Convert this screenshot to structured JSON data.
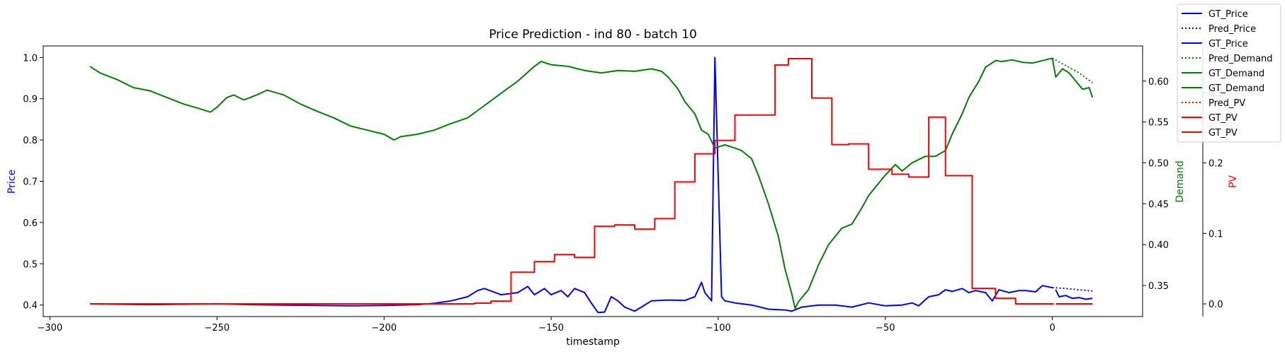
{
  "chart_data": {
    "type": "line",
    "title": "Price Prediction - ind 80 - batch 10",
    "xlabel": "timestamp",
    "xlim": [
      -302,
      27
    ],
    "xticks": [
      -300,
      -250,
      -200,
      -150,
      -100,
      -50,
      0
    ],
    "axes": {
      "price": {
        "label": "Price",
        "color": "#0000ff",
        "ylim": [
          0.372,
          1.028
        ],
        "ticks": [
          0.4,
          0.5,
          0.6,
          0.7,
          0.8,
          0.9,
          1.0
        ]
      },
      "demand": {
        "label": "Demand",
        "color": "#008000",
        "ylim": [
          0.312,
          0.643
        ],
        "ticks": [
          0.35,
          0.4,
          0.45,
          0.5,
          0.55,
          0.6
        ]
      },
      "pv": {
        "label": "PV",
        "color": "#ff0000",
        "ylim": [
          -0.018,
          0.366
        ],
        "ticks": [
          0.0,
          0.1,
          0.2,
          0.3
        ]
      }
    },
    "grid": false,
    "legend_position": "top-right (outside)",
    "legend": [
      {
        "label": "GT_Price",
        "color": "#0000ff",
        "style": "solid"
      },
      {
        "label": "Pred_Price",
        "color": "#0000ff",
        "style": "dotted"
      },
      {
        "label": "GT_Price",
        "color": "#0000ff",
        "style": "solid"
      },
      {
        "label": "Pred_Demand",
        "color": "#008000",
        "style": "dotted"
      },
      {
        "label": "GT_Demand",
        "color": "#008000",
        "style": "solid"
      },
      {
        "label": "GT_Demand",
        "color": "#008000",
        "style": "solid"
      },
      {
        "label": "Pred_PV",
        "color": "#ff0000",
        "style": "dotted"
      },
      {
        "label": "GT_PV",
        "color": "#ff0000",
        "style": "solid"
      },
      {
        "label": "GT_PV",
        "color": "#ff0000",
        "style": "solid"
      }
    ],
    "series": [
      {
        "name": "GT_Price",
        "axis": "price",
        "color": "#0000ff",
        "style": "solid",
        "points": [
          [
            -288,
            0.403
          ],
          [
            -280,
            0.402
          ],
          [
            -270,
            0.401
          ],
          [
            -260,
            0.402
          ],
          [
            -250,
            0.403
          ],
          [
            -240,
            0.401
          ],
          [
            -230,
            0.4
          ],
          [
            -220,
            0.399
          ],
          [
            -210,
            0.398
          ],
          [
            -200,
            0.399
          ],
          [
            -190,
            0.401
          ],
          [
            -185,
            0.404
          ],
          [
            -180,
            0.41
          ],
          [
            -175,
            0.42
          ],
          [
            -172,
            0.435
          ],
          [
            -170,
            0.44
          ],
          [
            -165,
            0.425
          ],
          [
            -160,
            0.43
          ],
          [
            -157,
            0.445
          ],
          [
            -155,
            0.425
          ],
          [
            -152,
            0.44
          ],
          [
            -150,
            0.425
          ],
          [
            -147,
            0.435
          ],
          [
            -145,
            0.42
          ],
          [
            -143,
            0.44
          ],
          [
            -140,
            0.43
          ],
          [
            -138,
            0.405
          ],
          [
            -136,
            0.382
          ],
          [
            -134,
            0.383
          ],
          [
            -132,
            0.42
          ],
          [
            -130,
            0.41
          ],
          [
            -128,
            0.395
          ],
          [
            -125,
            0.385
          ],
          [
            -123,
            0.395
          ],
          [
            -120,
            0.41
          ],
          [
            -115,
            0.412
          ],
          [
            -110,
            0.411
          ],
          [
            -107,
            0.42
          ],
          [
            -105,
            0.455
          ],
          [
            -104,
            0.43
          ],
          [
            -102,
            0.41
          ],
          [
            -101,
            1.0
          ],
          [
            -99,
            0.42
          ],
          [
            -98,
            0.41
          ],
          [
            -95,
            0.405
          ],
          [
            -90,
            0.4
          ],
          [
            -85,
            0.39
          ],
          [
            -80,
            0.388
          ],
          [
            -78,
            0.385
          ],
          [
            -75,
            0.395
          ],
          [
            -70,
            0.4
          ],
          [
            -65,
            0.4
          ],
          [
            -60,
            0.395
          ],
          [
            -55,
            0.405
          ],
          [
            -50,
            0.398
          ],
          [
            -45,
            0.4
          ],
          [
            -42,
            0.405
          ],
          [
            -40,
            0.398
          ],
          [
            -37,
            0.42
          ],
          [
            -34,
            0.425
          ],
          [
            -32,
            0.437
          ],
          [
            -30,
            0.433
          ],
          [
            -27,
            0.44
          ],
          [
            -25,
            0.43
          ],
          [
            -23,
            0.435
          ],
          [
            -20,
            0.43
          ],
          [
            -18,
            0.41
          ],
          [
            -16,
            0.437
          ],
          [
            -13,
            0.43
          ],
          [
            -10,
            0.435
          ],
          [
            -8,
            0.435
          ],
          [
            -5,
            0.432
          ],
          [
            -3,
            0.447
          ],
          [
            0,
            0.442
          ]
        ]
      },
      {
        "name": "Pred_Price",
        "axis": "price",
        "color": "#0000ff",
        "style": "dotted",
        "points": [
          [
            0,
            0.442
          ],
          [
            4,
            0.44
          ],
          [
            8,
            0.437
          ],
          [
            12,
            0.434
          ]
        ]
      },
      {
        "name": "GT_Price",
        "axis": "price",
        "color": "#0000ff",
        "style": "solid",
        "points": [
          [
            1,
            0.437
          ],
          [
            2,
            0.42
          ],
          [
            4,
            0.423
          ],
          [
            6,
            0.416
          ],
          [
            8,
            0.418
          ],
          [
            10,
            0.414
          ],
          [
            12,
            0.416
          ]
        ]
      },
      {
        "name": "GT_Demand",
        "axis": "demand",
        "color": "#008000",
        "style": "solid",
        "points": [
          [
            -288,
            0.618
          ],
          [
            -285,
            0.61
          ],
          [
            -280,
            0.602
          ],
          [
            -275,
            0.592
          ],
          [
            -270,
            0.588
          ],
          [
            -265,
            0.58
          ],
          [
            -260,
            0.572
          ],
          [
            -255,
            0.566
          ],
          [
            -252,
            0.562
          ],
          [
            -250,
            0.568
          ],
          [
            -247,
            0.58
          ],
          [
            -245,
            0.583
          ],
          [
            -242,
            0.577
          ],
          [
            -240,
            0.58
          ],
          [
            -237,
            0.585
          ],
          [
            -235,
            0.589
          ],
          [
            -230,
            0.583
          ],
          [
            -225,
            0.572
          ],
          [
            -220,
            0.563
          ],
          [
            -215,
            0.555
          ],
          [
            -210,
            0.545
          ],
          [
            -205,
            0.54
          ],
          [
            -200,
            0.535
          ],
          [
            -197,
            0.528
          ],
          [
            -195,
            0.532
          ],
          [
            -190,
            0.535
          ],
          [
            -185,
            0.54
          ],
          [
            -180,
            0.548
          ],
          [
            -175,
            0.555
          ],
          [
            -170,
            0.57
          ],
          [
            -165,
            0.585
          ],
          [
            -160,
            0.6
          ],
          [
            -155,
            0.618
          ],
          [
            -153,
            0.624
          ],
          [
            -150,
            0.62
          ],
          [
            -145,
            0.618
          ],
          [
            -140,
            0.613
          ],
          [
            -135,
            0.61
          ],
          [
            -130,
            0.613
          ],
          [
            -125,
            0.612
          ],
          [
            -120,
            0.615
          ],
          [
            -117,
            0.612
          ],
          [
            -115,
            0.605
          ],
          [
            -112,
            0.59
          ],
          [
            -110,
            0.575
          ],
          [
            -107,
            0.56
          ],
          [
            -105,
            0.54
          ],
          [
            -103,
            0.535
          ],
          [
            -101,
            0.518
          ],
          [
            -98,
            0.522
          ],
          [
            -95,
            0.518
          ],
          [
            -93,
            0.515
          ],
          [
            -90,
            0.505
          ],
          [
            -88,
            0.485
          ],
          [
            -85,
            0.45
          ],
          [
            -82,
            0.41
          ],
          [
            -80,
            0.37
          ],
          [
            -78,
            0.34
          ],
          [
            -77,
            0.322
          ],
          [
            -76,
            0.33
          ],
          [
            -73,
            0.345
          ],
          [
            -70,
            0.375
          ],
          [
            -67,
            0.4
          ],
          [
            -63,
            0.42
          ],
          [
            -60,
            0.425
          ],
          [
            -57,
            0.445
          ],
          [
            -55,
            0.46
          ],
          [
            -52,
            0.475
          ],
          [
            -50,
            0.485
          ],
          [
            -47,
            0.498
          ],
          [
            -45,
            0.49
          ],
          [
            -42,
            0.5
          ],
          [
            -38,
            0.508
          ],
          [
            -35,
            0.508
          ],
          [
            -32,
            0.515
          ],
          [
            -30,
            0.535
          ],
          [
            -27,
            0.56
          ],
          [
            -25,
            0.58
          ],
          [
            -22,
            0.6
          ],
          [
            -20,
            0.617
          ],
          [
            -17,
            0.625
          ],
          [
            -15,
            0.624
          ],
          [
            -12,
            0.626
          ],
          [
            -9,
            0.623
          ],
          [
            -6,
            0.622
          ],
          [
            -3,
            0.625
          ],
          [
            0,
            0.628
          ]
        ]
      },
      {
        "name": "Pred_Demand",
        "axis": "demand",
        "color": "#008000",
        "style": "dotted",
        "points": [
          [
            0,
            0.628
          ],
          [
            4,
            0.619
          ],
          [
            8,
            0.61
          ],
          [
            12,
            0.598
          ]
        ]
      },
      {
        "name": "GT_Demand",
        "axis": "demand",
        "color": "#008000",
        "style": "solid",
        "points": [
          [
            0,
            0.628
          ],
          [
            1,
            0.605
          ],
          [
            3,
            0.615
          ],
          [
            5,
            0.61
          ],
          [
            7,
            0.6
          ],
          [
            9,
            0.59
          ],
          [
            11,
            0.592
          ],
          [
            12,
            0.58
          ]
        ]
      },
      {
        "name": "GT_PV",
        "axis": "pv",
        "color": "#ff0000",
        "style": "solid",
        "points": [
          [
            -288,
            0.0
          ],
          [
            -173,
            0.0
          ],
          [
            -173,
            0.001
          ],
          [
            -168,
            0.001
          ],
          [
            -168,
            0.004
          ],
          [
            -162,
            0.004
          ],
          [
            -162,
            0.045
          ],
          [
            -155,
            0.045
          ],
          [
            -155,
            0.06
          ],
          [
            -149,
            0.06
          ],
          [
            -149,
            0.07
          ],
          [
            -143,
            0.07
          ],
          [
            -143,
            0.066
          ],
          [
            -137,
            0.066
          ],
          [
            -137,
            0.11
          ],
          [
            -131,
            0.11
          ],
          [
            -131,
            0.112
          ],
          [
            -125,
            0.112
          ],
          [
            -125,
            0.106
          ],
          [
            -119,
            0.106
          ],
          [
            -119,
            0.121
          ],
          [
            -113,
            0.121
          ],
          [
            -113,
            0.173
          ],
          [
            -107,
            0.173
          ],
          [
            -107,
            0.213
          ],
          [
            -101,
            0.213
          ],
          [
            -101,
            0.232
          ],
          [
            -95,
            0.232
          ],
          [
            -95,
            0.268
          ],
          [
            -83,
            0.268
          ],
          [
            -83,
            0.339
          ],
          [
            -79,
            0.339
          ],
          [
            -79,
            0.348
          ],
          [
            -72,
            0.348
          ],
          [
            -72,
            0.292
          ],
          [
            -66,
            0.292
          ],
          [
            -66,
            0.226
          ],
          [
            -61,
            0.226
          ],
          [
            -61,
            0.227
          ],
          [
            -55,
            0.227
          ],
          [
            -55,
            0.191
          ],
          [
            -48,
            0.191
          ],
          [
            -48,
            0.184
          ],
          [
            -43,
            0.184
          ],
          [
            -43,
            0.18
          ],
          [
            -37,
            0.18
          ],
          [
            -37,
            0.265
          ],
          [
            -32,
            0.265
          ],
          [
            -32,
            0.182
          ],
          [
            -24,
            0.182
          ],
          [
            -24,
            0.022
          ],
          [
            -17,
            0.022
          ],
          [
            -17,
            0.008
          ],
          [
            -11,
            0.008
          ],
          [
            -11,
            0.0
          ],
          [
            0,
            0.0
          ]
        ]
      },
      {
        "name": "Pred_PV",
        "axis": "pv",
        "color": "#ff0000",
        "style": "dotted",
        "points": [
          [
            0,
            0.0
          ],
          [
            12,
            0.0
          ]
        ]
      },
      {
        "name": "GT_PV",
        "axis": "pv",
        "color": "#ff0000",
        "style": "solid",
        "points": [
          [
            1,
            0.0
          ],
          [
            12,
            0.0
          ]
        ]
      }
    ]
  }
}
